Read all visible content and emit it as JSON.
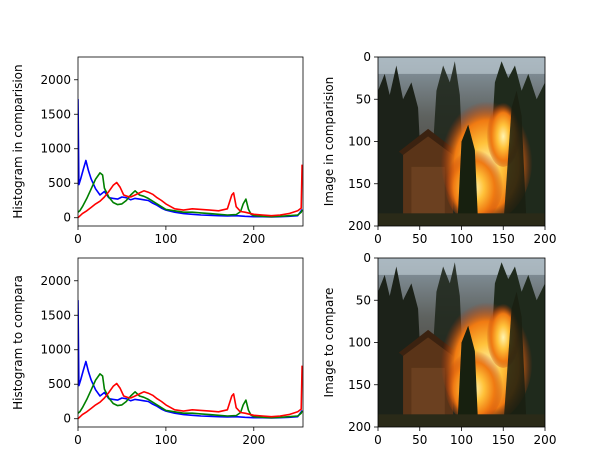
{
  "figure": {
    "background": "#ffffff"
  },
  "series_colors": {
    "blue": "#0000ff",
    "green": "#008000",
    "red": "#ff0000"
  },
  "chart_data": [
    {
      "id": "hist_top",
      "type": "line",
      "xlabel": "",
      "ylabel": "Histogram in comparision",
      "xlim": [
        0,
        256
      ],
      "ylim": [
        -120,
        2330
      ],
      "xticks": [
        0,
        100,
        200
      ],
      "yticks": [
        0,
        500,
        1000,
        1500,
        2000
      ],
      "series": [
        {
          "color": "blue",
          "x": [
            0,
            1,
            3,
            6,
            9,
            12,
            15,
            20,
            25,
            30,
            35,
            40,
            45,
            50,
            55,
            60,
            65,
            70,
            75,
            80,
            85,
            90,
            95,
            100,
            110,
            120,
            130,
            140,
            150,
            160,
            170,
            180,
            190,
            200,
            210,
            220,
            230,
            240,
            250,
            254,
            255
          ],
          "y": [
            1720,
            480,
            560,
            700,
            830,
            680,
            560,
            420,
            330,
            380,
            290,
            280,
            270,
            300,
            290,
            260,
            280,
            270,
            260,
            250,
            210,
            180,
            140,
            110,
            80,
            60,
            50,
            40,
            35,
            30,
            25,
            30,
            20,
            15,
            15,
            10,
            15,
            20,
            30,
            100,
            120
          ]
        },
        {
          "color": "green",
          "x": [
            0,
            2,
            5,
            10,
            15,
            20,
            25,
            28,
            30,
            35,
            40,
            45,
            50,
            55,
            60,
            65,
            70,
            75,
            80,
            85,
            90,
            95,
            100,
            110,
            120,
            130,
            140,
            150,
            160,
            170,
            180,
            185,
            188,
            191,
            194,
            197,
            200,
            210,
            220,
            230,
            240,
            250,
            254,
            255
          ],
          "y": [
            80,
            100,
            160,
            280,
            420,
            560,
            650,
            620,
            430,
            300,
            220,
            190,
            200,
            250,
            330,
            390,
            330,
            310,
            280,
            240,
            200,
            160,
            120,
            100,
            80,
            80,
            70,
            60,
            50,
            40,
            45,
            90,
            200,
            270,
            120,
            50,
            30,
            20,
            15,
            20,
            30,
            40,
            80,
            110
          ]
        },
        {
          "color": "red",
          "x": [
            0,
            5,
            10,
            15,
            20,
            25,
            30,
            35,
            40,
            44,
            48,
            52,
            56,
            60,
            65,
            70,
            75,
            80,
            85,
            90,
            95,
            100,
            110,
            120,
            130,
            140,
            150,
            160,
            170,
            175,
            177,
            180,
            185,
            190,
            200,
            210,
            220,
            230,
            240,
            250,
            254,
            255
          ],
          "y": [
            0,
            60,
            100,
            150,
            200,
            240,
            300,
            380,
            470,
            510,
            440,
            330,
            310,
            300,
            330,
            360,
            390,
            370,
            340,
            290,
            250,
            200,
            130,
            110,
            130,
            120,
            110,
            100,
            130,
            330,
            360,
            160,
            90,
            80,
            50,
            40,
            30,
            40,
            60,
            100,
            140,
            770
          ]
        }
      ]
    },
    {
      "id": "hist_bottom",
      "type": "line",
      "xlabel": "",
      "ylabel": "Histogram to compara",
      "xlim": [
        0,
        256
      ],
      "ylim": [
        -120,
        2330
      ],
      "xticks": [
        0,
        100,
        200
      ],
      "yticks": [
        0,
        500,
        1000,
        1500,
        2000
      ],
      "series": [
        {
          "color": "blue",
          "x": [
            0,
            1,
            3,
            6,
            9,
            12,
            15,
            20,
            25,
            30,
            35,
            40,
            45,
            50,
            55,
            60,
            65,
            70,
            75,
            80,
            85,
            90,
            95,
            100,
            110,
            120,
            130,
            140,
            150,
            160,
            170,
            180,
            190,
            200,
            210,
            220,
            230,
            240,
            250,
            254,
            255
          ],
          "y": [
            1720,
            480,
            560,
            700,
            830,
            680,
            560,
            420,
            330,
            380,
            290,
            280,
            270,
            300,
            290,
            260,
            280,
            270,
            260,
            250,
            210,
            180,
            140,
            110,
            80,
            60,
            50,
            40,
            35,
            30,
            25,
            30,
            20,
            15,
            15,
            10,
            15,
            20,
            30,
            100,
            120
          ]
        },
        {
          "color": "green",
          "x": [
            0,
            2,
            5,
            10,
            15,
            20,
            25,
            28,
            30,
            35,
            40,
            45,
            50,
            55,
            60,
            65,
            70,
            75,
            80,
            85,
            90,
            95,
            100,
            110,
            120,
            130,
            140,
            150,
            160,
            170,
            180,
            185,
            188,
            191,
            194,
            197,
            200,
            210,
            220,
            230,
            240,
            250,
            254,
            255
          ],
          "y": [
            80,
            100,
            160,
            280,
            420,
            560,
            650,
            620,
            430,
            300,
            220,
            190,
            200,
            250,
            330,
            390,
            330,
            310,
            280,
            240,
            200,
            160,
            120,
            100,
            80,
            80,
            70,
            60,
            50,
            40,
            45,
            90,
            200,
            270,
            120,
            50,
            30,
            20,
            15,
            20,
            30,
            40,
            80,
            110
          ]
        },
        {
          "color": "red",
          "x": [
            0,
            5,
            10,
            15,
            20,
            25,
            30,
            35,
            40,
            44,
            48,
            52,
            56,
            60,
            65,
            70,
            75,
            80,
            85,
            90,
            95,
            100,
            110,
            120,
            130,
            140,
            150,
            160,
            170,
            175,
            177,
            180,
            185,
            190,
            200,
            210,
            220,
            230,
            240,
            250,
            254,
            255
          ],
          "y": [
            0,
            60,
            100,
            150,
            200,
            240,
            300,
            380,
            470,
            510,
            440,
            330,
            310,
            300,
            330,
            360,
            390,
            370,
            340,
            290,
            250,
            200,
            130,
            110,
            130,
            120,
            110,
            100,
            130,
            330,
            360,
            160,
            90,
            80,
            50,
            40,
            30,
            40,
            60,
            100,
            140,
            770
          ]
        }
      ]
    },
    {
      "id": "img_top",
      "type": "image",
      "ylabel": "Image in comparision",
      "xlim": [
        0,
        200
      ],
      "ylim": [
        200,
        0
      ],
      "xticks": [
        0,
        50,
        100,
        150,
        200
      ],
      "yticks": [
        0,
        50,
        100,
        150,
        200
      ]
    },
    {
      "id": "img_bottom",
      "type": "image",
      "ylabel": "Image to compare",
      "xlim": [
        0,
        200
      ],
      "ylim": [
        200,
        0
      ],
      "xticks": [
        0,
        50,
        100,
        150,
        200
      ],
      "yticks": [
        0,
        50,
        100,
        150,
        200
      ]
    }
  ]
}
